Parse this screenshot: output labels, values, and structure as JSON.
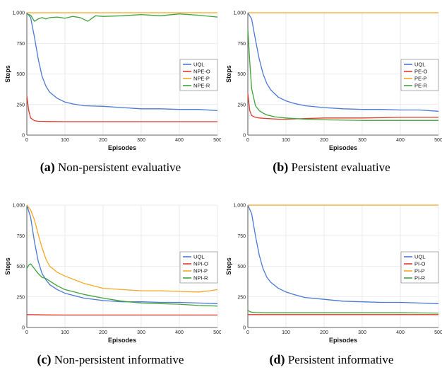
{
  "chart_data": [
    {
      "type": "line",
      "caption_tag": "(a)",
      "caption_text": "Non-persistent evaluative",
      "xlabel": "Episodes",
      "ylabel": "Steps",
      "xlim": [
        0,
        500
      ],
      "ylim": [
        0,
        1000
      ],
      "x_ticks": [
        0,
        100,
        200,
        300,
        400,
        500
      ],
      "y_ticks": [
        0,
        250,
        500,
        750,
        1000
      ],
      "y_tick_labels": [
        "0",
        "250",
        "500",
        "750",
        "1,000"
      ],
      "grid": true,
      "legend_position": "right",
      "series": [
        {
          "name": "UQL",
          "color": "#4a78d4",
          "x": [
            0,
            10,
            20,
            30,
            40,
            50,
            60,
            80,
            100,
            120,
            150,
            200,
            250,
            300,
            350,
            400,
            450,
            500
          ],
          "y": [
            1000,
            960,
            800,
            620,
            480,
            400,
            350,
            300,
            270,
            255,
            240,
            235,
            225,
            215,
            215,
            210,
            210,
            200
          ]
        },
        {
          "name": "NPE-O",
          "color": "#e0382b",
          "x": [
            0,
            5,
            10,
            20,
            30,
            40,
            60,
            100,
            200,
            300,
            400,
            500
          ],
          "y": [
            320,
            200,
            140,
            118,
            113,
            112,
            111,
            110,
            110,
            110,
            110,
            110
          ]
        },
        {
          "name": "NPE-P",
          "color": "#f5a623",
          "x": [
            0,
            500
          ],
          "y": [
            1000,
            1000
          ]
        },
        {
          "name": "NPE-R",
          "color": "#3fa33a",
          "x": [
            0,
            10,
            20,
            30,
            40,
            50,
            60,
            80,
            100,
            120,
            140,
            160,
            180,
            200,
            250,
            300,
            350,
            400,
            450,
            500
          ],
          "y": [
            990,
            980,
            930,
            950,
            960,
            950,
            960,
            965,
            955,
            970,
            960,
            930,
            975,
            970,
            975,
            985,
            975,
            990,
            980,
            965
          ]
        }
      ]
    },
    {
      "type": "line",
      "caption_tag": "(b)",
      "caption_text": "Persistent evaluative",
      "xlabel": "Episodes",
      "ylabel": "Steps",
      "xlim": [
        0,
        500
      ],
      "ylim": [
        0,
        1000
      ],
      "x_ticks": [
        0,
        100,
        200,
        300,
        400,
        500
      ],
      "y_ticks": [
        0,
        250,
        500,
        750,
        1000
      ],
      "y_tick_labels": [
        "0",
        "250",
        "500",
        "750",
        "1,000"
      ],
      "grid": true,
      "legend_position": "right",
      "series": [
        {
          "name": "UQL",
          "color": "#4a78d4",
          "x": [
            0,
            10,
            20,
            30,
            40,
            50,
            60,
            80,
            100,
            120,
            150,
            200,
            250,
            300,
            350,
            400,
            450,
            500
          ],
          "y": [
            1000,
            950,
            780,
            620,
            500,
            420,
            370,
            310,
            280,
            260,
            240,
            225,
            215,
            210,
            210,
            205,
            205,
            195
          ]
        },
        {
          "name": "PE-O",
          "color": "#e0382b",
          "x": [
            0,
            5,
            10,
            20,
            30,
            50,
            80,
            100,
            150,
            200,
            300,
            400,
            500
          ],
          "y": [
            340,
            200,
            160,
            145,
            140,
            135,
            130,
            130,
            135,
            140,
            140,
            145,
            145
          ]
        },
        {
          "name": "PE-P",
          "color": "#f5a623",
          "x": [
            0,
            500
          ],
          "y": [
            1000,
            1000
          ]
        },
        {
          "name": "PE-R",
          "color": "#3fa33a",
          "x": [
            0,
            5,
            10,
            20,
            30,
            40,
            50,
            70,
            100,
            150,
            200,
            300,
            400,
            500
          ],
          "y": [
            870,
            600,
            380,
            240,
            200,
            180,
            165,
            150,
            140,
            130,
            125,
            120,
            120,
            120
          ]
        }
      ]
    },
    {
      "type": "line",
      "caption_tag": "(c)",
      "caption_text": "Non-persistent informative",
      "xlabel": "Episodes",
      "ylabel": "Steps",
      "xlim": [
        0,
        500
      ],
      "ylim": [
        0,
        1000
      ],
      "x_ticks": [
        0,
        100,
        200,
        300,
        400,
        500
      ],
      "y_ticks": [
        0,
        250,
        500,
        750,
        1000
      ],
      "y_tick_labels": [
        "0",
        "250",
        "500",
        "750",
        "1,000"
      ],
      "grid": true,
      "legend_position": "right",
      "series": [
        {
          "name": "UQL",
          "color": "#4a78d4",
          "x": [
            0,
            10,
            20,
            30,
            40,
            50,
            60,
            80,
            100,
            150,
            200,
            250,
            300,
            350,
            400,
            450,
            500
          ],
          "y": [
            1000,
            900,
            700,
            540,
            440,
            390,
            350,
            310,
            280,
            240,
            220,
            210,
            210,
            205,
            205,
            200,
            195
          ]
        },
        {
          "name": "NPI-O",
          "color": "#e0382b",
          "x": [
            0,
            50,
            100,
            200,
            300,
            400,
            500
          ],
          "y": [
            105,
            103,
            102,
            102,
            102,
            102,
            102
          ]
        },
        {
          "name": "NPI-P",
          "color": "#f5a623",
          "x": [
            0,
            10,
            20,
            30,
            40,
            50,
            60,
            80,
            100,
            150,
            200,
            250,
            300,
            350,
            400,
            450,
            480,
            500
          ],
          "y": [
            1000,
            960,
            880,
            760,
            650,
            560,
            500,
            450,
            420,
            360,
            320,
            310,
            300,
            300,
            295,
            290,
            300,
            310
          ]
        },
        {
          "name": "NPI-R",
          "color": "#3fa33a",
          "x": [
            0,
            5,
            10,
            20,
            30,
            40,
            50,
            60,
            80,
            100,
            150,
            200,
            250,
            300,
            350,
            400,
            450,
            500
          ],
          "y": [
            480,
            510,
            520,
            480,
            440,
            410,
            400,
            380,
            340,
            310,
            270,
            240,
            215,
            200,
            195,
            190,
            180,
            175
          ]
        }
      ]
    },
    {
      "type": "line",
      "caption_tag": "(d)",
      "caption_text": "Persistent informative",
      "xlabel": "Episodes",
      "ylabel": "Steps",
      "xlim": [
        0,
        500
      ],
      "ylim": [
        0,
        1000
      ],
      "x_ticks": [
        0,
        100,
        200,
        300,
        400,
        500
      ],
      "y_ticks": [
        0,
        250,
        500,
        750,
        1000
      ],
      "y_tick_labels": [
        "0",
        "250",
        "500",
        "750",
        "1,000"
      ],
      "grid": true,
      "legend_position": "right",
      "series": [
        {
          "name": "UQL",
          "color": "#4a78d4",
          "x": [
            0,
            10,
            20,
            30,
            40,
            50,
            60,
            80,
            100,
            120,
            150,
            200,
            250,
            300,
            350,
            400,
            450,
            500
          ],
          "y": [
            1000,
            930,
            750,
            590,
            480,
            410,
            370,
            320,
            290,
            270,
            245,
            230,
            215,
            210,
            205,
            205,
            200,
            195
          ]
        },
        {
          "name": "PI-O",
          "color": "#e0382b",
          "x": [
            0,
            50,
            100,
            200,
            300,
            400,
            500
          ],
          "y": [
            105,
            105,
            105,
            105,
            105,
            105,
            105
          ]
        },
        {
          "name": "PI-P",
          "color": "#f5a623",
          "x": [
            0,
            500
          ],
          "y": [
            1000,
            1000
          ]
        },
        {
          "name": "PI-R",
          "color": "#3fa33a",
          "x": [
            0,
            5,
            10,
            20,
            50,
            100,
            200,
            300,
            400,
            500
          ],
          "y": [
            140,
            130,
            125,
            122,
            120,
            120,
            120,
            120,
            120,
            118
          ]
        }
      ]
    }
  ]
}
